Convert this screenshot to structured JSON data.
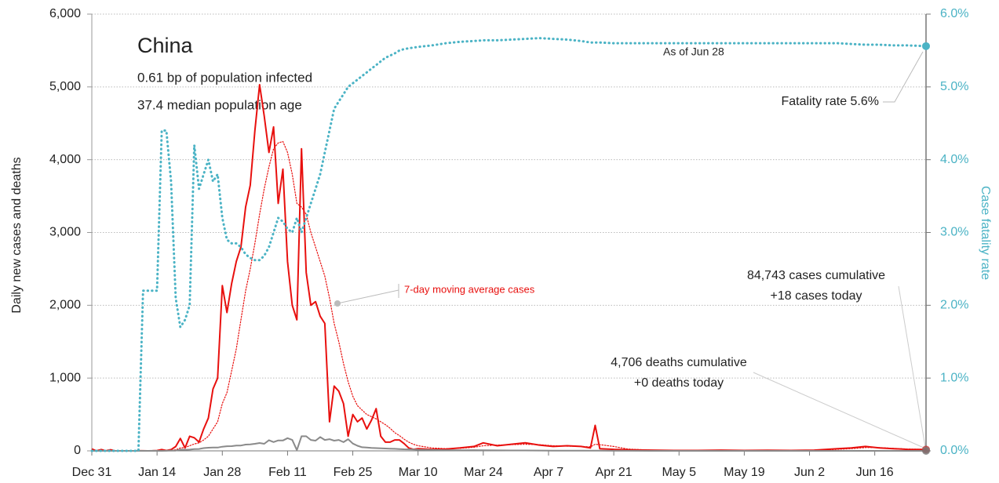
{
  "chart_data": {
    "type": "line",
    "title": "China",
    "subtitle": [
      "0.61 bp of population infected",
      "37.4 median population age"
    ],
    "ylabel": "Daily new cases and deaths",
    "y2label": "Case fatality rate",
    "annotations": [
      "As of Jun 28",
      "Fatality rate 5.6%",
      "84,743 cases cumulative",
      "+18 cases today",
      "4,706 deaths cumulative",
      "+0 deaths today"
    ],
    "x": [
      0,
      1,
      2,
      3,
      4,
      5,
      6,
      7,
      8,
      9,
      10,
      11,
      12,
      13,
      14,
      15,
      16,
      17,
      18,
      19,
      20,
      21,
      22,
      23,
      24,
      25,
      26,
      27,
      28,
      29,
      30,
      31,
      32,
      33,
      34,
      35,
      36,
      37,
      38,
      39,
      40,
      41,
      42,
      43,
      44,
      45,
      46,
      47,
      48,
      49,
      50,
      51,
      52,
      53,
      54,
      55,
      56,
      57,
      58,
      59,
      60,
      61,
      62,
      63,
      64,
      65,
      66,
      67,
      68,
      69,
      70,
      73,
      76,
      79,
      82,
      84,
      87,
      90,
      93,
      96,
      99,
      102,
      105,
      107,
      108,
      109,
      112,
      115,
      120,
      125,
      130,
      135,
      140,
      145,
      150,
      155,
      160,
      163,
      166,
      169,
      172,
      175,
      179
    ],
    "xlim": [
      0,
      179
    ],
    "xticks": [
      {
        "value": 0,
        "label": "Dec 31"
      },
      {
        "value": 14,
        "label": "Jan 14"
      },
      {
        "value": 28,
        "label": "Jan 28"
      },
      {
        "value": 42,
        "label": "Feb 11"
      },
      {
        "value": 56,
        "label": "Feb 25"
      },
      {
        "value": 70,
        "label": "Mar 10"
      },
      {
        "value": 84,
        "label": "Mar 24"
      },
      {
        "value": 98,
        "label": "Apr 7"
      },
      {
        "value": 112,
        "label": "Apr 21"
      },
      {
        "value": 126,
        "label": "May 5"
      },
      {
        "value": 140,
        "label": "May 19"
      },
      {
        "value": 154,
        "label": "Jun 2"
      },
      {
        "value": 168,
        "label": "Jun 16"
      }
    ],
    "ylim": [
      0,
      6000
    ],
    "yticks": [
      0,
      {
        "value": 1000,
        "label": "1,000"
      },
      {
        "value": 2000,
        "label": "2,000"
      },
      {
        "value": 3000,
        "label": "3,000"
      },
      {
        "value": 4000,
        "label": "4,000"
      },
      {
        "value": 5000,
        "label": "5,000"
      },
      {
        "value": 6000,
        "label": "6,000"
      }
    ],
    "y2lim": [
      0,
      6
    ],
    "y2ticks": [
      {
        "value": 0,
        "label": "0.0%"
      },
      {
        "value": 1,
        "label": "1.0%"
      },
      {
        "value": 2,
        "label": "2.0%"
      },
      {
        "value": 3,
        "label": "3.0%"
      },
      {
        "value": 4,
        "label": "4.0%"
      },
      {
        "value": 5,
        "label": "5.0%"
      },
      {
        "value": 6,
        "label": "6.0%"
      }
    ],
    "grid": true,
    "series": [
      {
        "color": "#e8100e",
        "style": "solid",
        "values": [
          27,
          0,
          17,
          0,
          15,
          0,
          0,
          0,
          0,
          0,
          1,
          1,
          0,
          1,
          4,
          17,
          4,
          17,
          59,
          170,
          40,
          200,
          180,
          120,
          300,
          450,
          850,
          1000,
          2270,
          1900,
          2300,
          2600,
          2800,
          3350,
          3650,
          4400,
          5030,
          4600,
          4100,
          4450,
          3400,
          3870,
          2600,
          2000,
          1800,
          4150,
          2450,
          2000,
          2050,
          1850,
          1750,
          400,
          890,
          820,
          650,
          200,
          500,
          400,
          450,
          300,
          420,
          580,
          200,
          120,
          120,
          150,
          150,
          100,
          40,
          20,
          30,
          20,
          25,
          40,
          60,
          110,
          70,
          90,
          110,
          80,
          60,
          70,
          60,
          40,
          350,
          30,
          20,
          15,
          10,
          5,
          5,
          10,
          5,
          8,
          5,
          10,
          30,
          40,
          60,
          40,
          30,
          20,
          18
        ]
      },
      {
        "name": "7-day moving average cases",
        "color": "#e8100e",
        "style": "dotted",
        "values": [
          5,
          4,
          6,
          4,
          4,
          2,
          2,
          0,
          0,
          0,
          0,
          0,
          0,
          1,
          1,
          3,
          4,
          6,
          15,
          40,
          45,
          70,
          95,
          110,
          150,
          200,
          300,
          400,
          650,
          800,
          1100,
          1400,
          1800,
          2200,
          2500,
          2850,
          3250,
          3600,
          3900,
          4150,
          4230,
          4250,
          4100,
          3800,
          3400,
          3350,
          3250,
          3000,
          2800,
          2600,
          2400,
          2100,
          1750,
          1500,
          1200,
          950,
          750,
          620,
          560,
          500,
          470,
          440,
          400,
          360,
          310,
          250,
          210,
          160,
          120,
          90,
          70,
          40,
          30,
          35,
          50,
          70,
          80,
          85,
          90,
          85,
          70,
          65,
          60,
          55,
          90,
          85,
          60,
          25,
          10,
          6,
          6,
          8,
          6,
          7,
          6,
          8,
          20,
          30,
          45,
          45,
          35,
          25,
          20
        ]
      },
      {
        "color": "#8a8a8a",
        "style": "solid",
        "values": [
          0,
          0,
          0,
          0,
          0,
          0,
          0,
          0,
          0,
          0,
          1,
          0,
          0,
          1,
          0,
          0,
          1,
          4,
          3,
          17,
          15,
          17,
          25,
          26,
          38,
          43,
          46,
          45,
          57,
          64,
          65,
          73,
          73,
          86,
          89,
          97,
          108,
          97,
          146,
          121,
          143,
          142,
          175,
          150,
          10,
          200,
          200,
          150,
          140,
          190,
          150,
          160,
          140,
          150,
          120,
          160,
          100,
          70,
          50,
          45,
          40,
          38,
          35,
          32,
          30,
          28,
          25,
          22,
          20,
          18,
          15,
          12,
          10,
          8,
          10,
          8,
          6,
          5,
          5,
          4,
          3,
          3,
          2,
          2,
          2,
          2,
          1,
          1,
          0,
          0,
          0,
          0,
          0,
          0,
          0,
          0,
          0,
          0,
          0,
          0,
          0,
          0,
          0
        ]
      },
      {
        "color": "#4bb3c5",
        "style": "dotted",
        "axis": "y2",
        "values": [
          0,
          0,
          0,
          0,
          0,
          0,
          0,
          0,
          0,
          0,
          0,
          2.2,
          2.2,
          2.2,
          2.2,
          4.4,
          4.4,
          3.7,
          2.1,
          1.7,
          1.8,
          2.0,
          4.2,
          3.6,
          3.8,
          4.0,
          3.7,
          3.8,
          3.2,
          2.9,
          2.85,
          2.85,
          2.8,
          2.7,
          2.65,
          2.62,
          2.62,
          2.68,
          2.8,
          3.0,
          3.2,
          3.15,
          3.05,
          3.0,
          3.2,
          3.0,
          3.2,
          3.4,
          3.6,
          3.8,
          4.1,
          4.4,
          4.7,
          4.8,
          4.9,
          5.0,
          5.05,
          5.1,
          5.15,
          5.2,
          5.25,
          5.3,
          5.35,
          5.4,
          5.43,
          5.46,
          5.5,
          5.52,
          5.53,
          5.54,
          5.55,
          5.57,
          5.6,
          5.62,
          5.63,
          5.64,
          5.64,
          5.65,
          5.66,
          5.67,
          5.66,
          5.65,
          5.63,
          5.61,
          5.61,
          5.61,
          5.6,
          5.6,
          5.6,
          5.6,
          5.6,
          5.6,
          5.6,
          5.6,
          5.6,
          5.6,
          5.6,
          5.59,
          5.58,
          5.58,
          5.57,
          5.57,
          5.56
        ]
      }
    ]
  }
}
